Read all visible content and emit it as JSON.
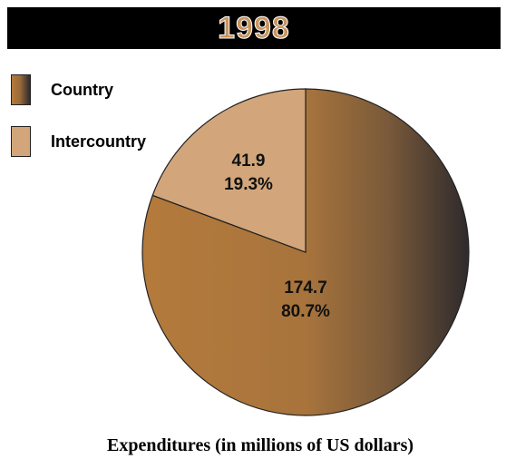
{
  "title": "1998",
  "footer": "Expenditures (in millions of US dollars)",
  "legend": [
    {
      "label": "Country"
    },
    {
      "label": "Intercountry"
    }
  ],
  "colors": {
    "country_light": "#b47a3c",
    "country_dark": "#2e2a2c",
    "intercountry": "#d2a67a",
    "title_text": "#c8955f",
    "title_bg": "#000000"
  },
  "chart_data": {
    "type": "pie",
    "title": "1998",
    "labels": [
      "Country",
      "Intercountry"
    ],
    "values": [
      174.7,
      41.9
    ],
    "percent_labels": [
      "80.7%",
      "19.3%"
    ],
    "value_labels": [
      "174.7",
      "41.9"
    ],
    "legend_position": "top-left"
  }
}
